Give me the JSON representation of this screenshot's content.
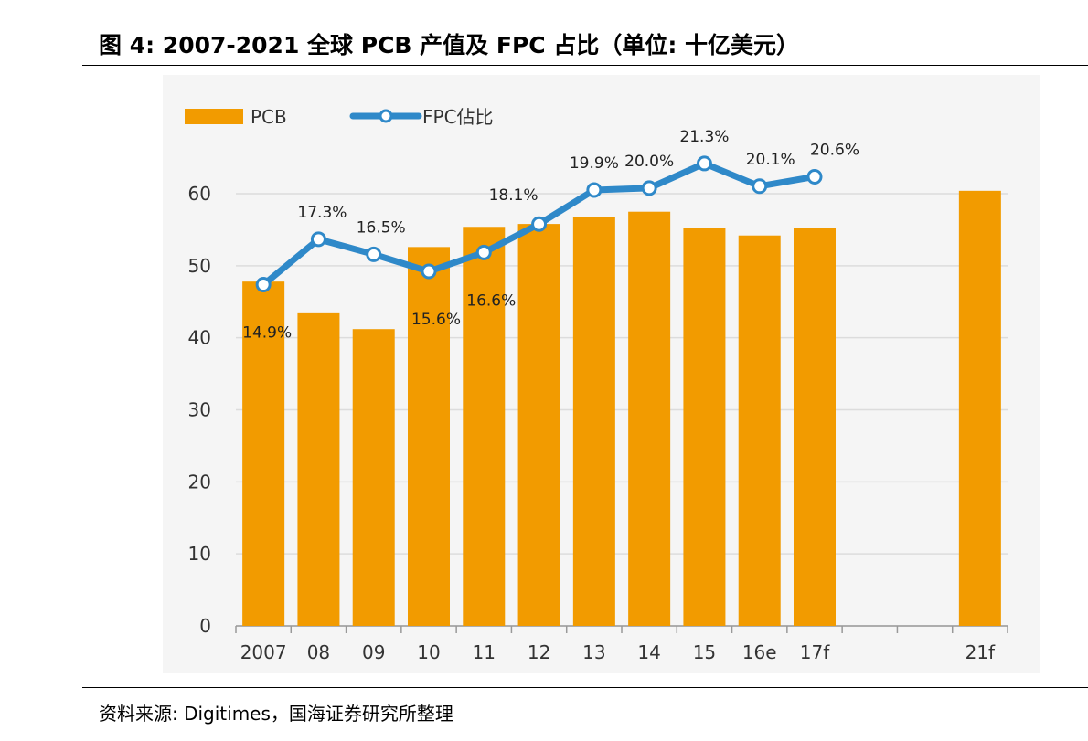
{
  "title": "图 4:  2007-2021 全球 PCB 产值及 FPC 占比（单位:  十亿美元）",
  "source": "资料来源:  Digitimes，国海证券研究所整理",
  "colors": {
    "bar": "#f29b00",
    "line": "#2f89c9",
    "marker_fill": "#ffffff",
    "grid": "#dcdcdc"
  },
  "chart_data": {
    "type": "bar",
    "legend": {
      "placement": "top-left",
      "items": [
        "PCB",
        "FPC佔比"
      ]
    },
    "categories": [
      "2007",
      "08",
      "09",
      "10",
      "11",
      "12",
      "13",
      "14",
      "15",
      "16e",
      "17f",
      "",
      "",
      "21f"
    ],
    "ylim": [
      0,
      60
    ],
    "yticks": [
      0,
      10,
      20,
      30,
      40,
      50,
      60
    ],
    "grid": true,
    "series": [
      {
        "name": "PCB",
        "type": "bar",
        "values": [
          47.8,
          43.4,
          41.2,
          52.6,
          55.4,
          55.8,
          56.8,
          57.5,
          55.3,
          54.2,
          55.3,
          null,
          null,
          60.4
        ]
      },
      {
        "name": "FPC佔比",
        "type": "line",
        "values": [
          14.9,
          17.3,
          16.5,
          15.6,
          16.6,
          18.1,
          19.9,
          20.0,
          21.3,
          20.1,
          20.6,
          null,
          null,
          null
        ],
        "labels": [
          "14.9%",
          "17.3%",
          "16.5%",
          "15.6%",
          "16.6%",
          "18.1%",
          "19.9%",
          "20.0%",
          "21.3%",
          "20.1%",
          "20.6%",
          "",
          "",
          ""
        ]
      }
    ]
  }
}
